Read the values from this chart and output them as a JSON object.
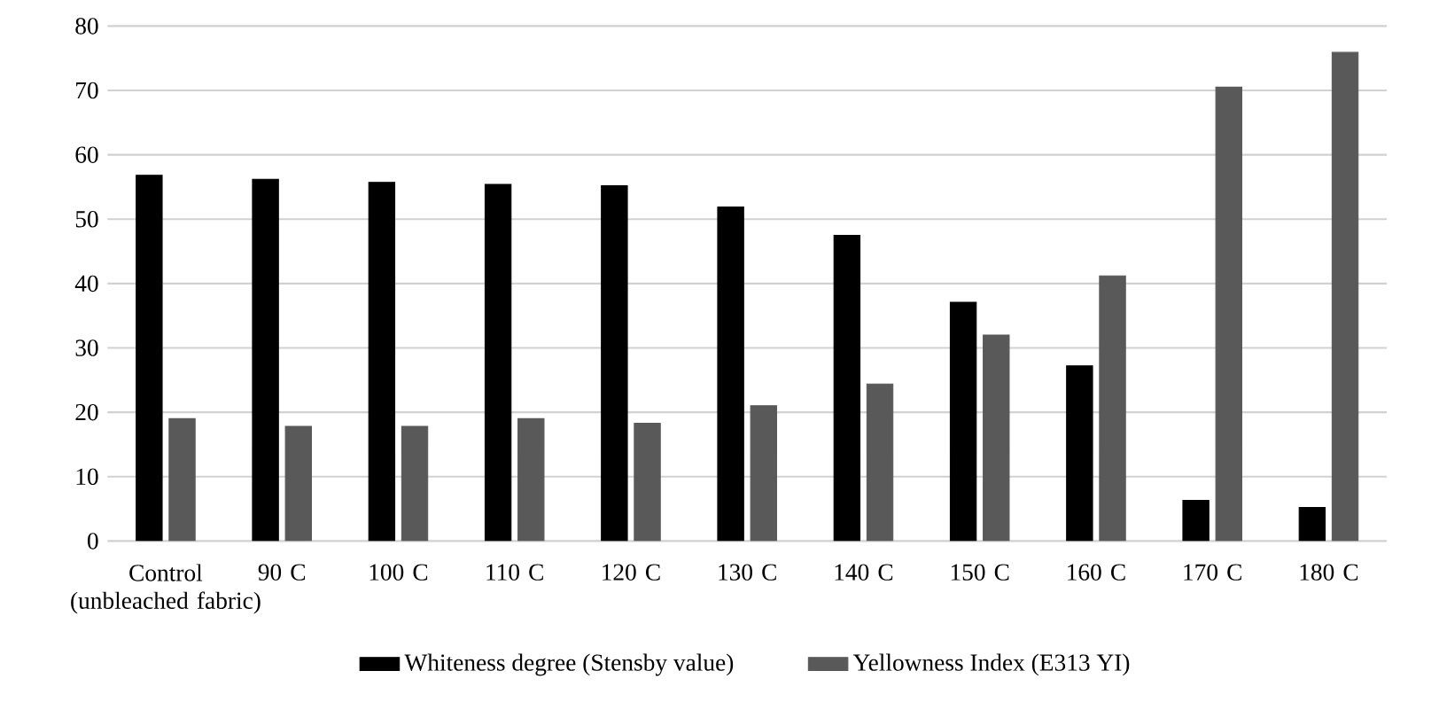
{
  "chart_data": {
    "type": "bar",
    "categories": [
      "Control (unbleached fabric)",
      "90 C",
      "100 C",
      "110 C",
      "120 C",
      "130 C",
      "140 C",
      "150 C",
      "160 C",
      "170 C",
      "180 C"
    ],
    "series": [
      {
        "name": "Whiteness degree (Stensby value)",
        "color": "#000000",
        "values": [
          56.8,
          56.2,
          55.7,
          55.4,
          55.2,
          51.9,
          47.5,
          37.1,
          27.2,
          6.3,
          5.2
        ]
      },
      {
        "name": "Yellowness Index (E313 YI)",
        "color": "#595959",
        "values": [
          19.0,
          17.8,
          17.8,
          19.0,
          18.3,
          21.0,
          24.4,
          32.0,
          41.2,
          70.5,
          75.9
        ]
      }
    ],
    "ylim": [
      0,
      80
    ],
    "yticks": [
      0,
      10,
      20,
      30,
      40,
      50,
      60,
      70,
      80
    ],
    "grid": "y",
    "legend": "bottom"
  }
}
